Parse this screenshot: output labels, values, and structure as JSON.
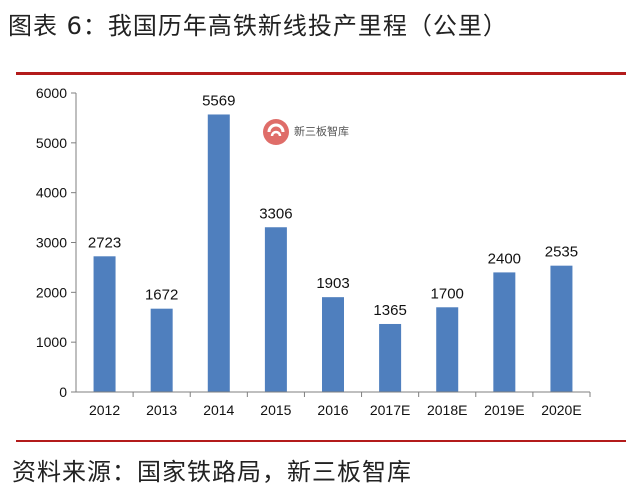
{
  "title": "图表 6：我国历年高铁新线投产里程（公里）",
  "source": "资料来源：国家铁路局，新三板智库",
  "watermark": {
    "text": "新三板智库"
  },
  "colors": {
    "bar": "#4f7fbe",
    "rule": "#b31b1b",
    "axis": "#7f7f7f"
  },
  "chart_data": {
    "type": "bar",
    "title": "",
    "xlabel": "",
    "ylabel": "",
    "categories": [
      "2012",
      "2013",
      "2014",
      "2015",
      "2016",
      "2017E",
      "2018E",
      "2019E",
      "2020E"
    ],
    "values": [
      2723,
      1672,
      5569,
      3306,
      1903,
      1365,
      1700,
      2400,
      2535
    ],
    "ylim": [
      0,
      6000
    ],
    "yticks": [
      0,
      1000,
      2000,
      3000,
      4000,
      5000,
      6000
    ],
    "grid": false,
    "legend": "none"
  }
}
